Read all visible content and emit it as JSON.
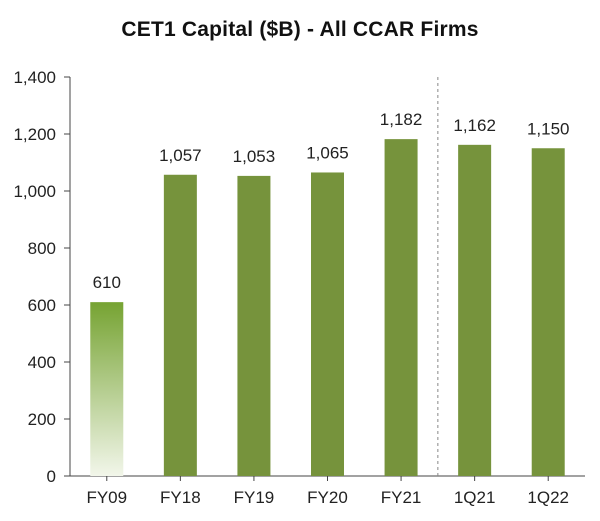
{
  "chart_data": {
    "type": "bar",
    "title": "CET1 Capital ($B) - All CCAR Firms",
    "xlabel": "",
    "ylabel": "",
    "categories": [
      "FY09",
      "FY18",
      "FY19",
      "FY20",
      "FY21",
      "1Q21",
      "1Q22"
    ],
    "values": [
      610,
      1057,
      1053,
      1065,
      1182,
      1162,
      1150
    ],
    "value_labels": [
      "610",
      "1,057",
      "1,053",
      "1,065",
      "1,182",
      "1,162",
      "1,150"
    ],
    "ylim": [
      0,
      1400
    ],
    "yticks": [
      0,
      200,
      400,
      600,
      800,
      1000,
      1200,
      1400
    ],
    "ytick_labels": [
      "0",
      "200",
      "400",
      "600",
      "800",
      "1,000",
      "1,200",
      "1,400"
    ],
    "grid": false,
    "legend": "none",
    "separator_after_category": "FY21",
    "bar_color": "#76933c",
    "first_bar_gradient": {
      "top": "#76a332",
      "bottom": "#f2f6ea"
    }
  }
}
